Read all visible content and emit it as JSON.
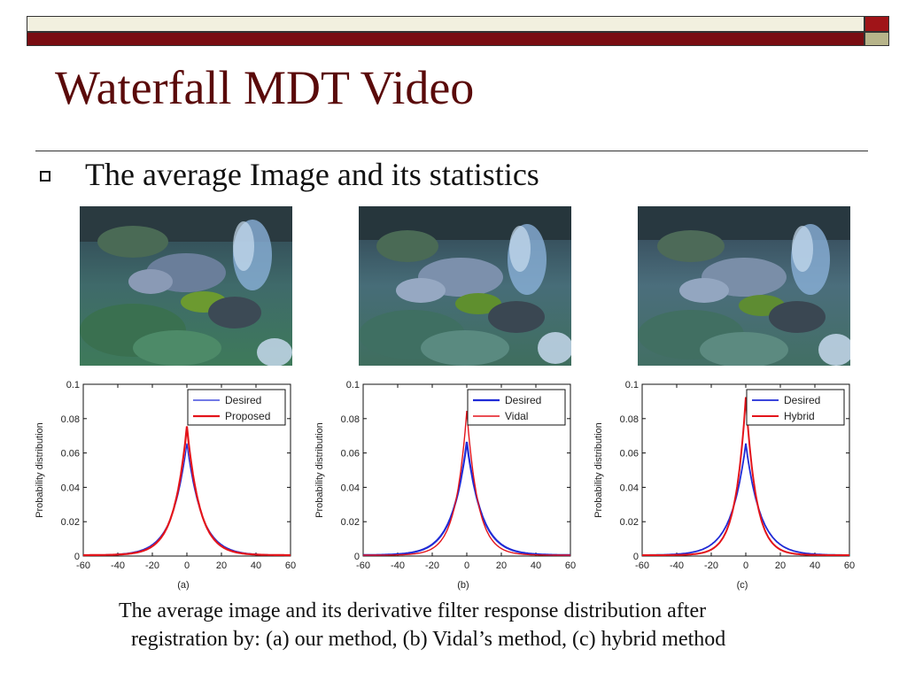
{
  "slide": {
    "title": "Waterfall MDT Video",
    "bullet": "The average Image and its statistics",
    "caption_line1": "The average image and its derivative filter response distribution after",
    "caption_line2": "registration by: (a) our method, (b) Vidal’s method, (c) hybrid method"
  },
  "colors": {
    "title": "#5a0a0a",
    "bar_dark_red": "#7a0d12",
    "bar_light": "#f2f0df",
    "desired_series": "#1f2bd6",
    "compared_series": "#e3141b"
  },
  "photos": [
    {
      "name": "waterfall-average-image-a"
    },
    {
      "name": "waterfall-average-image-b"
    },
    {
      "name": "waterfall-average-image-c"
    }
  ],
  "chart_data": [
    {
      "type": "line",
      "panel_label": "(a)",
      "ylabel": "Probability distribution",
      "xlim": [
        -60,
        60
      ],
      "ylim": [
        0,
        0.1
      ],
      "xticks": [
        "-60",
        "-40",
        "-20",
        "0",
        "20",
        "40",
        "60"
      ],
      "yticks": [
        "0",
        "0.02",
        "0.04",
        "0.06",
        "0.08",
        "0.1"
      ],
      "legend_position": "top-right",
      "series": [
        {
          "name": "Desired",
          "color": "#1f2bd6",
          "width": 1.3,
          "peak": 0.065,
          "scale": 8.5
        },
        {
          "name": "Proposed",
          "color": "#e3141b",
          "width": 2.2,
          "peak": 0.075,
          "scale": 7.5
        }
      ]
    },
    {
      "type": "line",
      "panel_label": "(b)",
      "ylabel": "Probability distribution",
      "xlim": [
        -60,
        60
      ],
      "ylim": [
        0,
        0.1
      ],
      "xticks": [
        "-60",
        "-40",
        "-20",
        "0",
        "20",
        "40",
        "60"
      ],
      "yticks": [
        "0",
        "0.02",
        "0.04",
        "0.06",
        "0.08",
        "0.1"
      ],
      "legend_position": "top-right",
      "series": [
        {
          "name": "Desired",
          "color": "#1f2bd6",
          "width": 2.2,
          "peak": 0.066,
          "scale": 8.5
        },
        {
          "name": "Vidal",
          "color": "#e3141b",
          "width": 1.4,
          "peak": 0.084,
          "scale": 6.5
        }
      ]
    },
    {
      "type": "line",
      "panel_label": "(c)",
      "ylabel": "Probability distribution",
      "xlim": [
        -60,
        60
      ],
      "ylim": [
        0,
        0.1
      ],
      "xticks": [
        "-60",
        "-40",
        "-20",
        "0",
        "20",
        "40",
        "60"
      ],
      "yticks": [
        "0",
        "0.02",
        "0.04",
        "0.06",
        "0.08",
        "0.1"
      ],
      "legend_position": "top-right",
      "series": [
        {
          "name": "Desired",
          "color": "#1f2bd6",
          "width": 1.8,
          "peak": 0.065,
          "scale": 8.5
        },
        {
          "name": "Hybrid",
          "color": "#e3141b",
          "width": 2.0,
          "peak": 0.092,
          "scale": 6.0
        }
      ]
    }
  ]
}
